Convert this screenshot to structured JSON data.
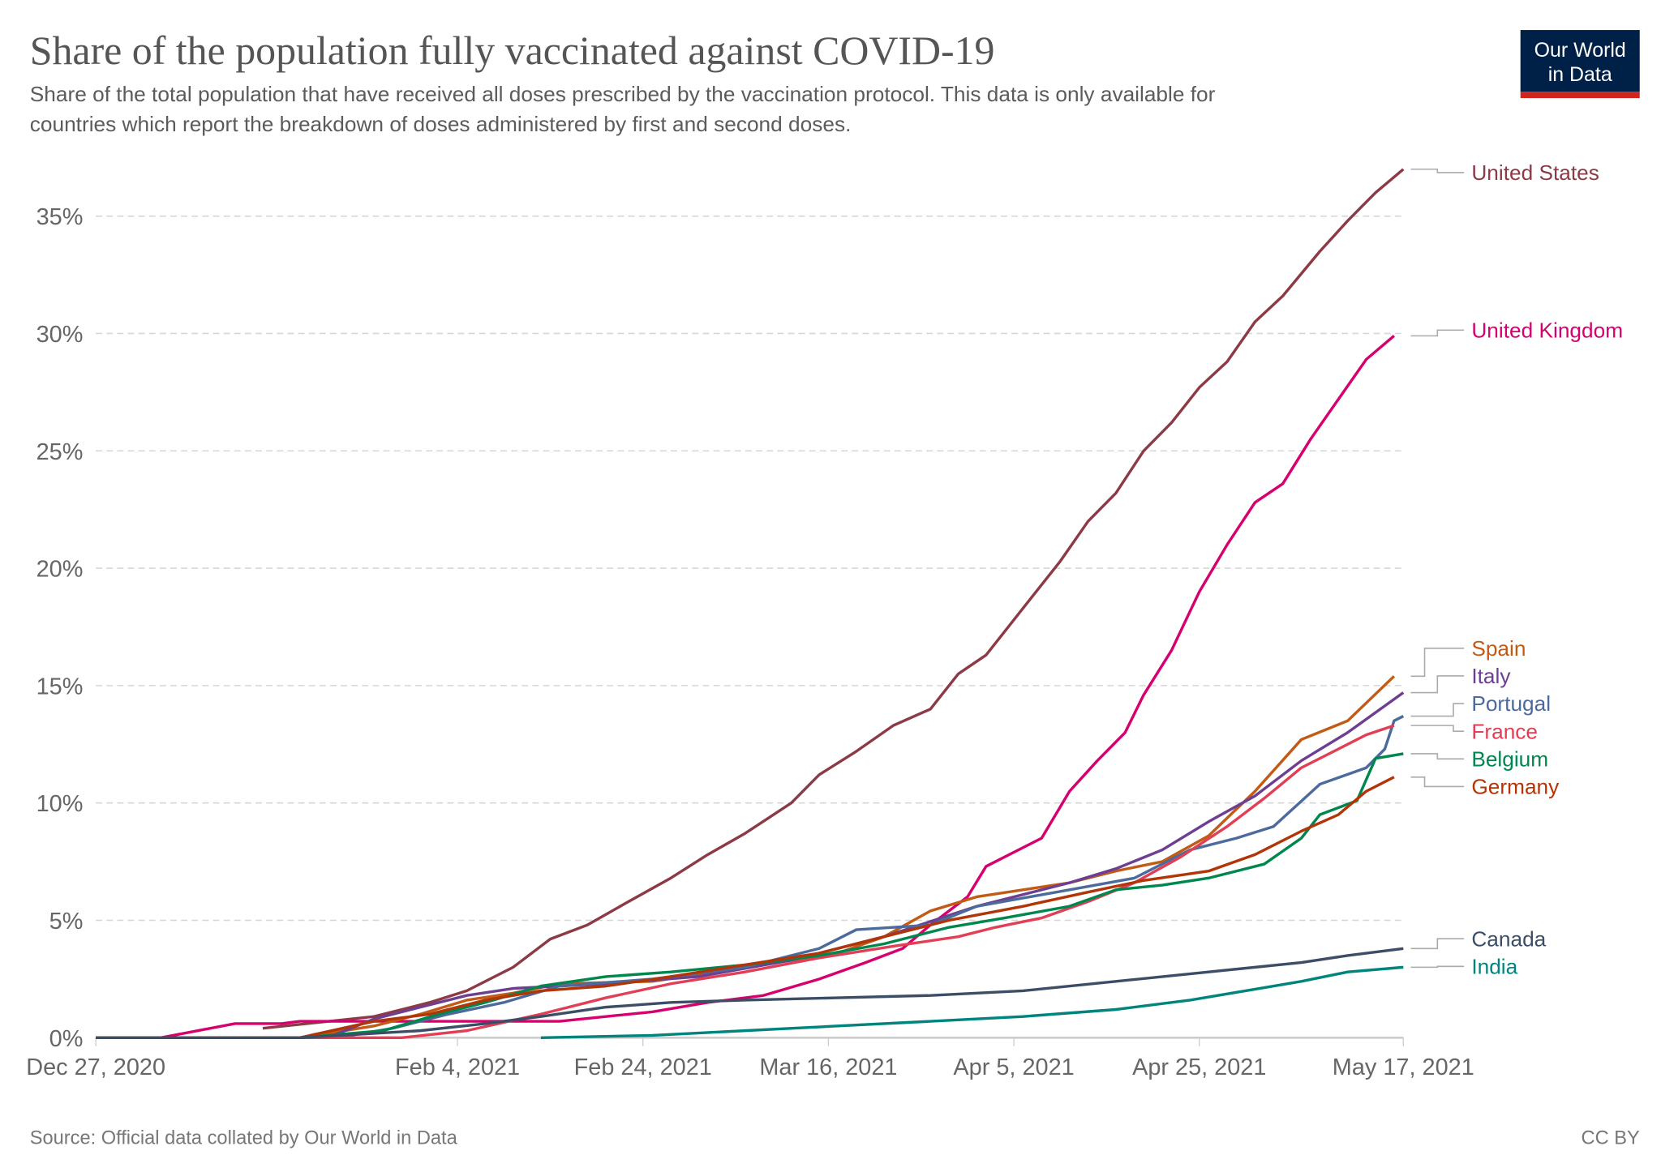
{
  "header": {
    "title": "Share of the population fully vaccinated against COVID-19",
    "subtitle_line1": "Share of the total population that have received all doses prescribed by the vaccination protocol. This data is only available for",
    "subtitle_line2": "countries which report the breakdown of doses administered by first and second doses.",
    "logo_line1": "Our World",
    "logo_line2": "in Data"
  },
  "footer": {
    "source": "Source: Official data collated by Our World in Data",
    "license": "CC BY"
  },
  "colors": {
    "logo_bg": "#002147",
    "logo_bar": "#ce261e",
    "grid": "#dddddd",
    "axis_text": "#666666"
  },
  "chart_data": {
    "type": "line",
    "title": "Share of the population fully vaccinated against COVID-19",
    "xlabel": "",
    "ylabel": "",
    "x_unit": "days since Dec 27, 2020",
    "xlim": [
      0,
      141
    ],
    "ylim": [
      0,
      37
    ],
    "grid": true,
    "legend": "right, inline labels at line ends",
    "yticks": [
      {
        "v": 0,
        "label": "0%"
      },
      {
        "v": 5,
        "label": "5%"
      },
      {
        "v": 10,
        "label": "10%"
      },
      {
        "v": 15,
        "label": "15%"
      },
      {
        "v": 20,
        "label": "20%"
      },
      {
        "v": 25,
        "label": "25%"
      },
      {
        "v": 30,
        "label": "30%"
      },
      {
        "v": 35,
        "label": "35%"
      }
    ],
    "xticks": [
      {
        "v": 0,
        "label": "Dec 27, 2020"
      },
      {
        "v": 39,
        "label": "Feb 4, 2021"
      },
      {
        "v": 59,
        "label": "Feb 24, 2021"
      },
      {
        "v": 79,
        "label": "Mar 16, 2021"
      },
      {
        "v": 99,
        "label": "Apr 5, 2021"
      },
      {
        "v": 119,
        "label": "Apr 25, 2021"
      },
      {
        "v": 141,
        "label": "May 17, 2021"
      }
    ],
    "series": [
      {
        "name": "United States",
        "color": "#8c3a45",
        "points": [
          [
            18,
            0.4
          ],
          [
            30,
            0.9
          ],
          [
            36,
            1.5
          ],
          [
            40,
            2.0
          ],
          [
            45,
            3.0
          ],
          [
            49,
            4.2
          ],
          [
            53,
            4.8
          ],
          [
            57,
            5.7
          ],
          [
            62,
            6.8
          ],
          [
            66,
            7.8
          ],
          [
            70,
            8.7
          ],
          [
            75,
            10.0
          ],
          [
            78,
            11.2
          ],
          [
            82,
            12.2
          ],
          [
            86,
            13.3
          ],
          [
            90,
            14.0
          ],
          [
            93,
            15.5
          ],
          [
            96,
            16.3
          ],
          [
            100,
            18.3
          ],
          [
            104,
            20.3
          ],
          [
            107,
            22.0
          ],
          [
            110,
            23.2
          ],
          [
            113,
            25.0
          ],
          [
            116,
            26.2
          ],
          [
            119,
            27.7
          ],
          [
            122,
            28.8
          ],
          [
            125,
            30.5
          ],
          [
            128,
            31.6
          ],
          [
            132,
            33.5
          ],
          [
            135,
            34.8
          ],
          [
            138,
            36.0
          ],
          [
            141,
            37.0
          ]
        ]
      },
      {
        "name": "United Kingdom",
        "color": "#d6006e",
        "points": [
          [
            0,
            0
          ],
          [
            7,
            0
          ],
          [
            15,
            0.6
          ],
          [
            20,
            0.6
          ],
          [
            22,
            0.7
          ],
          [
            50,
            0.7
          ],
          [
            55,
            0.9
          ],
          [
            60,
            1.1
          ],
          [
            66,
            1.5
          ],
          [
            72,
            1.8
          ],
          [
            78,
            2.5
          ],
          [
            83,
            3.2
          ],
          [
            87,
            3.8
          ],
          [
            90,
            4.8
          ],
          [
            94,
            6.0
          ],
          [
            96,
            7.3
          ],
          [
            99,
            7.9
          ],
          [
            102,
            8.5
          ],
          [
            105,
            10.5
          ],
          [
            108,
            11.8
          ],
          [
            111,
            13.0
          ],
          [
            113,
            14.6
          ],
          [
            116,
            16.5
          ],
          [
            119,
            19.0
          ],
          [
            122,
            21.0
          ],
          [
            125,
            22.8
          ],
          [
            128,
            23.6
          ],
          [
            131,
            25.5
          ],
          [
            134,
            27.2
          ],
          [
            137,
            28.9
          ],
          [
            140,
            29.9
          ]
        ]
      },
      {
        "name": "Spain",
        "color": "#c15b16",
        "points": [
          [
            0,
            0
          ],
          [
            22,
            0
          ],
          [
            30,
            0.5
          ],
          [
            35,
            1.0
          ],
          [
            40,
            1.6
          ],
          [
            45,
            1.9
          ],
          [
            50,
            2.3
          ],
          [
            60,
            2.4
          ],
          [
            70,
            3.0
          ],
          [
            80,
            3.6
          ],
          [
            85,
            4.3
          ],
          [
            90,
            5.4
          ],
          [
            95,
            6.0
          ],
          [
            100,
            6.3
          ],
          [
            105,
            6.6
          ],
          [
            110,
            7.1
          ],
          [
            115,
            7.5
          ],
          [
            120,
            8.6
          ],
          [
            125,
            10.5
          ],
          [
            130,
            12.7
          ],
          [
            135,
            13.5
          ],
          [
            140,
            15.4
          ]
        ]
      },
      {
        "name": "Italy",
        "color": "#6d3e91",
        "points": [
          [
            0,
            0
          ],
          [
            25,
            0
          ],
          [
            30,
            0.8
          ],
          [
            35,
            1.3
          ],
          [
            40,
            1.8
          ],
          [
            45,
            2.1
          ],
          [
            55,
            2.3
          ],
          [
            65,
            2.6
          ],
          [
            75,
            3.3
          ],
          [
            85,
            4.3
          ],
          [
            95,
            5.6
          ],
          [
            105,
            6.6
          ],
          [
            110,
            7.2
          ],
          [
            115,
            8.0
          ],
          [
            120,
            9.2
          ],
          [
            125,
            10.3
          ],
          [
            130,
            11.8
          ],
          [
            135,
            13.0
          ],
          [
            141,
            14.7
          ]
        ]
      },
      {
        "name": "Portugal",
        "color": "#4c6a9c",
        "points": [
          [
            0,
            0
          ],
          [
            26,
            0
          ],
          [
            32,
            0.4
          ],
          [
            38,
            1.0
          ],
          [
            44,
            1.5
          ],
          [
            50,
            2.2
          ],
          [
            60,
            2.5
          ],
          [
            70,
            3.0
          ],
          [
            78,
            3.8
          ],
          [
            82,
            4.6
          ],
          [
            90,
            4.8
          ],
          [
            95,
            5.6
          ],
          [
            105,
            6.3
          ],
          [
            112,
            6.8
          ],
          [
            118,
            8.0
          ],
          [
            123,
            8.5
          ],
          [
            127,
            9.0
          ],
          [
            132,
            10.8
          ],
          [
            137,
            11.5
          ],
          [
            139,
            12.3
          ],
          [
            140,
            13.5
          ],
          [
            141,
            13.7
          ]
        ]
      },
      {
        "name": "France",
        "color": "#e03f56",
        "points": [
          [
            0,
            0
          ],
          [
            33,
            0
          ],
          [
            40,
            0.3
          ],
          [
            48,
            1.0
          ],
          [
            55,
            1.7
          ],
          [
            62,
            2.3
          ],
          [
            70,
            2.8
          ],
          [
            78,
            3.4
          ],
          [
            86,
            3.9
          ],
          [
            93,
            4.3
          ],
          [
            97,
            4.7
          ],
          [
            102,
            5.1
          ],
          [
            107,
            5.8
          ],
          [
            112,
            6.6
          ],
          [
            117,
            7.7
          ],
          [
            122,
            9.0
          ],
          [
            126,
            10.2
          ],
          [
            130,
            11.5
          ],
          [
            134,
            12.3
          ],
          [
            137,
            12.9
          ],
          [
            140,
            13.3
          ]
        ]
      },
      {
        "name": "Belgium",
        "color": "#00874d",
        "points": [
          [
            0,
            0
          ],
          [
            22,
            0
          ],
          [
            31,
            0.3
          ],
          [
            37,
            1.0
          ],
          [
            42,
            1.5
          ],
          [
            48,
            2.2
          ],
          [
            55,
            2.6
          ],
          [
            62,
            2.8
          ],
          [
            70,
            3.1
          ],
          [
            78,
            3.5
          ],
          [
            85,
            4.0
          ],
          [
            92,
            4.7
          ],
          [
            98,
            5.1
          ],
          [
            105,
            5.6
          ],
          [
            110,
            6.3
          ],
          [
            115,
            6.5
          ],
          [
            120,
            6.8
          ],
          [
            126,
            7.4
          ],
          [
            130,
            8.5
          ],
          [
            132,
            9.5
          ],
          [
            136,
            10.1
          ],
          [
            138,
            11.9
          ],
          [
            141,
            12.1
          ]
        ]
      },
      {
        "name": "Germany",
        "color": "#b13507",
        "points": [
          [
            0,
            0
          ],
          [
            22,
            0
          ],
          [
            30,
            0.7
          ],
          [
            36,
            1.0
          ],
          [
            42,
            1.6
          ],
          [
            48,
            2.0
          ],
          [
            55,
            2.2
          ],
          [
            62,
            2.6
          ],
          [
            70,
            3.1
          ],
          [
            78,
            3.6
          ],
          [
            85,
            4.3
          ],
          [
            92,
            5.0
          ],
          [
            100,
            5.6
          ],
          [
            107,
            6.2
          ],
          [
            113,
            6.7
          ],
          [
            120,
            7.1
          ],
          [
            125,
            7.8
          ],
          [
            130,
            8.8
          ],
          [
            134,
            9.5
          ],
          [
            137,
            10.5
          ],
          [
            140,
            11.1
          ]
        ]
      },
      {
        "name": "Canada",
        "color": "#3c4e66",
        "points": [
          [
            0,
            0
          ],
          [
            22,
            0
          ],
          [
            35,
            0.3
          ],
          [
            42,
            0.6
          ],
          [
            48,
            0.9
          ],
          [
            55,
            1.3
          ],
          [
            62,
            1.5
          ],
          [
            70,
            1.6
          ],
          [
            80,
            1.7
          ],
          [
            90,
            1.8
          ],
          [
            100,
            2.0
          ],
          [
            110,
            2.4
          ],
          [
            120,
            2.8
          ],
          [
            130,
            3.2
          ],
          [
            135,
            3.5
          ],
          [
            141,
            3.8
          ]
        ]
      },
      {
        "name": "India",
        "color": "#00847e",
        "points": [
          [
            48,
            0
          ],
          [
            60,
            0.1
          ],
          [
            70,
            0.3
          ],
          [
            80,
            0.5
          ],
          [
            90,
            0.7
          ],
          [
            100,
            0.9
          ],
          [
            110,
            1.2
          ],
          [
            118,
            1.6
          ],
          [
            124,
            2.0
          ],
          [
            130,
            2.4
          ],
          [
            135,
            2.8
          ],
          [
            141,
            3.0
          ]
        ]
      }
    ]
  }
}
